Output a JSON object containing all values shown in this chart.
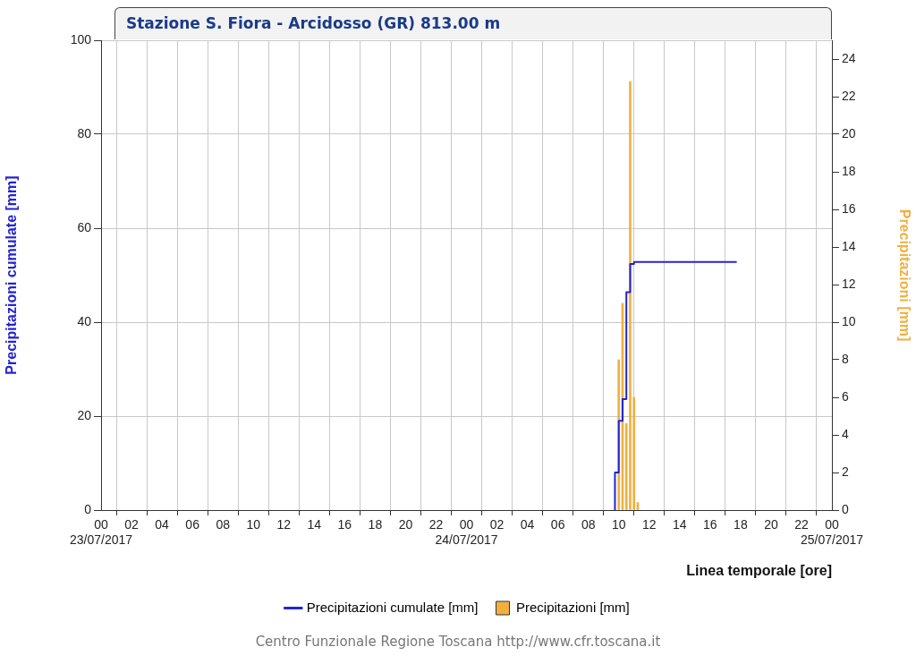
{
  "chart_data": {
    "type": "bar",
    "title": "Stazione S. Fiora - Arcidosso (GR) 813.00 m",
    "xlabel": "Linea temporale [ore]",
    "ylabel": "Precipitazioni cumulate [mm]",
    "y2label": "Precipitazioni [mm]",
    "xlim": [
      "2017-07-23T00:00",
      "2017-07-25T00:00"
    ],
    "xticks": [
      {
        "value": "2017-07-23T00:00",
        "label": "00\n23/07/2017"
      },
      {
        "value": "2017-07-23T02:00",
        "label": "02"
      },
      {
        "value": "2017-07-23T04:00",
        "label": "04"
      },
      {
        "value": "2017-07-23T06:00",
        "label": "06"
      },
      {
        "value": "2017-07-23T08:00",
        "label": "08"
      },
      {
        "value": "2017-07-23T10:00",
        "label": "10"
      },
      {
        "value": "2017-07-23T12:00",
        "label": "12"
      },
      {
        "value": "2017-07-23T14:00",
        "label": "14"
      },
      {
        "value": "2017-07-23T16:00",
        "label": "16"
      },
      {
        "value": "2017-07-23T18:00",
        "label": "18"
      },
      {
        "value": "2017-07-23T20:00",
        "label": "20"
      },
      {
        "value": "2017-07-23T22:00",
        "label": "22"
      },
      {
        "value": "2017-07-24T00:00",
        "label": "00\n24/07/2017"
      },
      {
        "value": "2017-07-24T02:00",
        "label": "02"
      },
      {
        "value": "2017-07-24T04:00",
        "label": "04"
      },
      {
        "value": "2017-07-24T06:00",
        "label": "06"
      },
      {
        "value": "2017-07-24T08:00",
        "label": "08"
      },
      {
        "value": "2017-07-24T10:00",
        "label": "10"
      },
      {
        "value": "2017-07-24T12:00",
        "label": "12"
      },
      {
        "value": "2017-07-24T14:00",
        "label": "14"
      },
      {
        "value": "2017-07-24T16:00",
        "label": "16"
      },
      {
        "value": "2017-07-24T18:00",
        "label": "18"
      },
      {
        "value": "2017-07-24T20:00",
        "label": "20"
      },
      {
        "value": "2017-07-24T22:00",
        "label": "22"
      },
      {
        "value": "2017-07-25T00:00",
        "label": "00\n25/07/2017"
      }
    ],
    "ylim": [
      0,
      100
    ],
    "yticks": [
      0,
      20,
      40,
      60,
      80,
      100
    ],
    "y2lim": [
      0,
      25
    ],
    "y2ticks": [
      0,
      2,
      4,
      6,
      8,
      10,
      12,
      14,
      16,
      18,
      20,
      22,
      24
    ],
    "series": [
      {
        "name": "Precipitazioni cumulate [mm]",
        "type": "step",
        "color": "#2424d0",
        "x": [
          "2017-07-24T09:45",
          "2017-07-24T09:45",
          "2017-07-24T10:00",
          "2017-07-24T10:15",
          "2017-07-24T10:30",
          "2017-07-24T10:45",
          "2017-07-24T11:00",
          "2017-07-24T17:45"
        ],
        "values": [
          0,
          8,
          19,
          23.6,
          46.4,
          52.4,
          52.8,
          52.8
        ]
      },
      {
        "name": "Precipitazioni [mm]",
        "axis": "y2",
        "color": "#f0b040",
        "x": [
          "2017-07-24T10:00",
          "2017-07-24T10:15",
          "2017-07-24T10:30",
          "2017-07-24T10:45",
          "2017-07-24T11:00",
          "2017-07-24T11:15"
        ],
        "values": [
          8,
          11,
          4.6,
          22.8,
          6,
          0.4
        ]
      }
    ],
    "grid": true,
    "legend": "bottom",
    "marker": "none",
    "annotations": [
      "Centro Funzionale Regione Toscana http://www.cfr.toscana.it"
    ]
  }
}
